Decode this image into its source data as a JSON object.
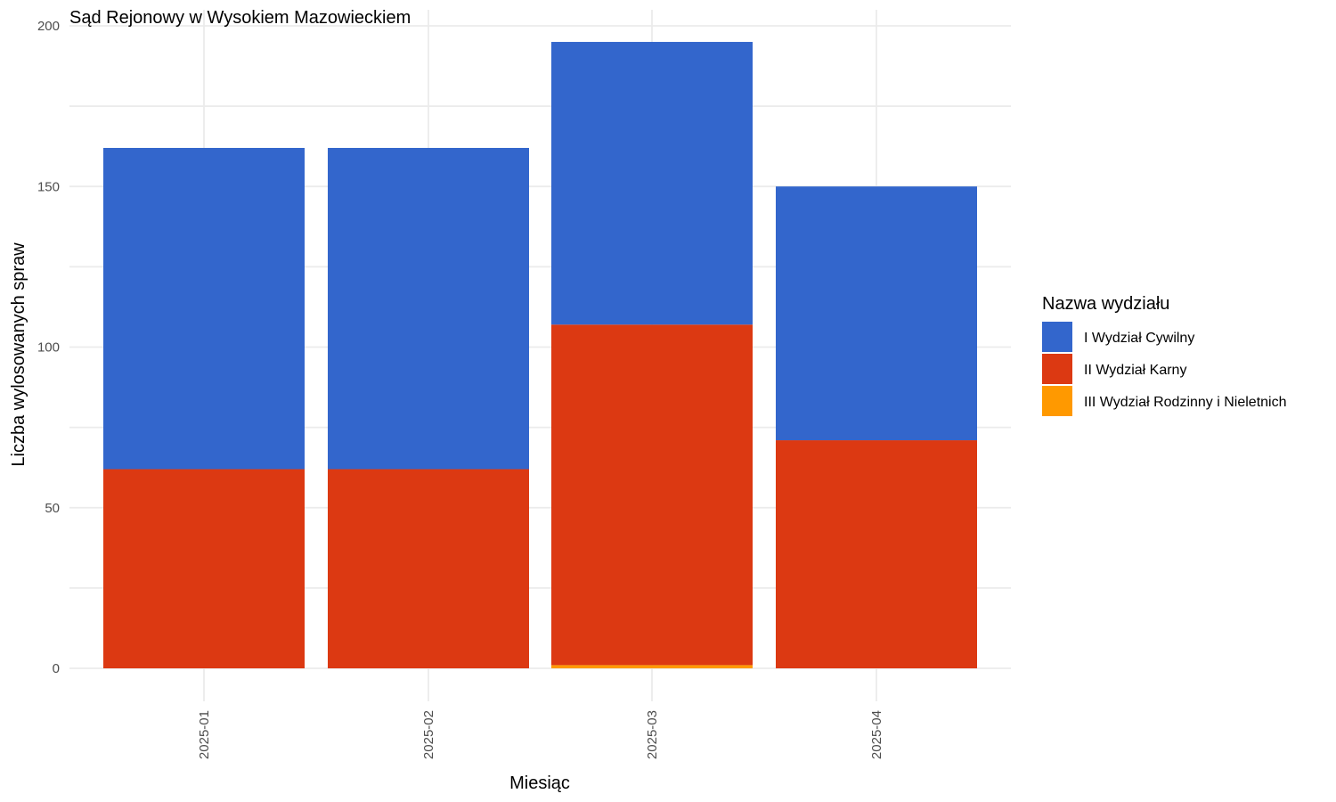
{
  "chart_data": {
    "type": "bar",
    "stacked": true,
    "title": "Sąd Rejonowy w Wysokiem Mazowieckiem",
    "xlabel": "Miesiąc",
    "ylabel": "Liczba wylosowanych spraw",
    "ylim": [
      0,
      200
    ],
    "yticks": [
      "0",
      "50",
      "100",
      "150",
      "200"
    ],
    "categories": [
      "2025-01",
      "2025-02",
      "2025-03",
      "2025-04"
    ],
    "grid": true,
    "legend": {
      "title": "Nazwa wydziału",
      "position": "right"
    },
    "series": [
      {
        "name": "I Wydział Cywilny",
        "color": "#3366cc",
        "values": [
          100,
          100,
          88,
          79
        ]
      },
      {
        "name": "II Wydział Karny",
        "color": "#dc3912",
        "values": [
          62,
          62,
          106,
          71
        ]
      },
      {
        "name": "III Wydział Rodzinny i Nieletnich",
        "color": "#ff9900",
        "values": [
          0,
          0,
          1,
          0
        ]
      }
    ],
    "stack_order": [
      2,
      1,
      0
    ]
  }
}
